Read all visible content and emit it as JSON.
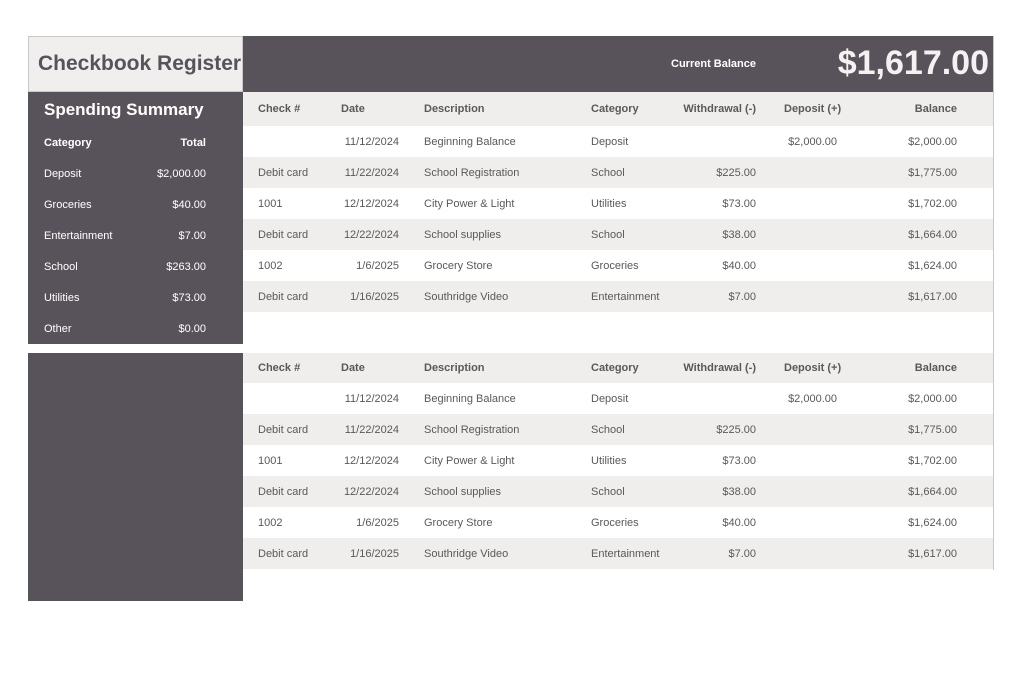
{
  "title": "Checkbook Register",
  "current_balance": {
    "label": "Current Balance",
    "value": "$1,617.00"
  },
  "summary": {
    "title": "Spending Summary",
    "headers": [
      "Category",
      "Total"
    ],
    "rows": [
      [
        "Deposit",
        "$2,000.00"
      ],
      [
        "Groceries",
        "$40.00"
      ],
      [
        "Entertainment",
        "$7.00"
      ],
      [
        "School",
        "$263.00"
      ],
      [
        "Utilities",
        "$73.00"
      ],
      [
        "Other",
        "$0.00"
      ]
    ]
  },
  "colors": {
    "dark": "#58535A",
    "light": "#F0EEEC"
  },
  "tables": [
    {
      "headers": [
        "Check #",
        "Date",
        "Description",
        "Category",
        "Withdrawal (-)",
        "Deposit (+)",
        "Balance"
      ],
      "rows": [
        [
          "",
          "11/12/2024",
          "Beginning Balance",
          "Deposit",
          "",
          "$2,000.00",
          "$2,000.00"
        ],
        [
          "Debit card",
          "11/22/2024",
          "School Registration",
          "School",
          "$225.00",
          "",
          "$1,775.00"
        ],
        [
          "1001",
          "12/12/2024",
          "City Power & Light",
          "Utilities",
          "$73.00",
          "",
          "$1,702.00"
        ],
        [
          "Debit card",
          "12/22/2024",
          "School supplies",
          "School",
          "$38.00",
          "",
          "$1,664.00"
        ],
        [
          "1002",
          "1/6/2025",
          "Grocery Store",
          "Groceries",
          "$40.00",
          "",
          "$1,624.00"
        ],
        [
          "Debit card",
          "1/16/2025",
          "Southridge Video",
          "Entertainment",
          "$7.00",
          "",
          "$1,617.00"
        ]
      ]
    },
    {
      "headers": [
        "Check #",
        "Date",
        "Description",
        "Category",
        "Withdrawal (-)",
        "Deposit (+)",
        "Balance"
      ],
      "rows": [
        [
          "",
          "11/12/2024",
          "Beginning Balance",
          "Deposit",
          "",
          "$2,000.00",
          "$2,000.00"
        ],
        [
          "Debit card",
          "11/22/2024",
          "School Registration",
          "School",
          "$225.00",
          "",
          "$1,775.00"
        ],
        [
          "1001",
          "12/12/2024",
          "City Power & Light",
          "Utilities",
          "$73.00",
          "",
          "$1,702.00"
        ],
        [
          "Debit card",
          "12/22/2024",
          "School supplies",
          "School",
          "$38.00",
          "",
          "$1,664.00"
        ],
        [
          "1002",
          "1/6/2025",
          "Grocery Store",
          "Groceries",
          "$40.00",
          "",
          "$1,624.00"
        ],
        [
          "Debit card",
          "1/16/2025",
          "Southridge Video",
          "Entertainment",
          "$7.00",
          "",
          "$1,617.00"
        ]
      ]
    }
  ]
}
